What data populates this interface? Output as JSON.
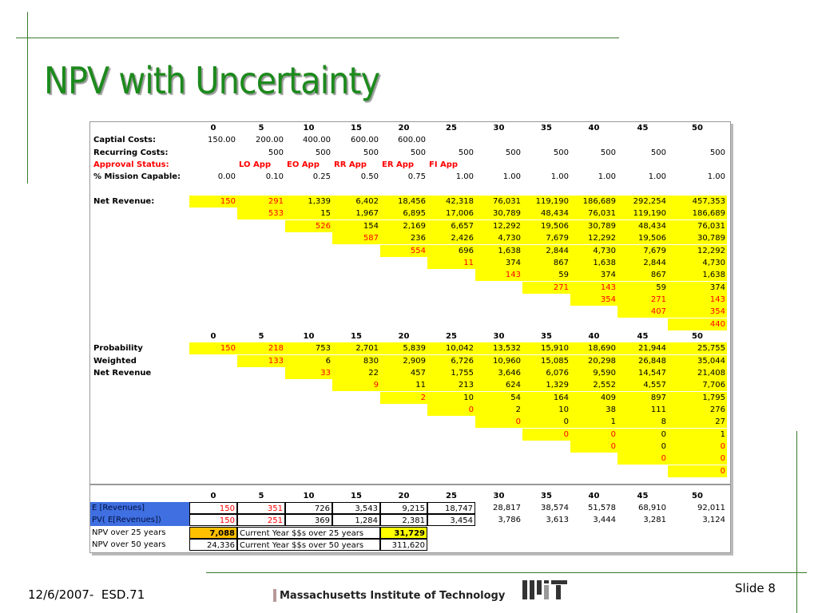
{
  "slide": {
    "title": "NPV with Uncertainty",
    "date": "12/6/2007-  ESD.71",
    "institution": "Massachusetts Institute of Technology",
    "slide_number": "Slide 8"
  },
  "sheet": {
    "columns": [
      "0",
      "5",
      "10",
      "15",
      "20",
      "25",
      "30",
      "35",
      "40",
      "45",
      "50"
    ],
    "inputs": [
      {
        "label": "Captial Costs:",
        "cells": [
          "150.00",
          "200.00",
          "400.00",
          "600.00",
          "600.00",
          null,
          null,
          null,
          null,
          null,
          null
        ]
      },
      {
        "label": "Recurring Costs:",
        "cells": [
          null,
          "500",
          "500",
          "500",
          "500",
          "500",
          "500",
          "500",
          "500",
          "500",
          "500"
        ]
      },
      {
        "label": "Approval Status:",
        "color": "red",
        "align": "left",
        "cells": [
          null,
          "LO App",
          "EO App",
          "RR App",
          "ER App",
          "FI App",
          null,
          null,
          null,
          null,
          null
        ]
      },
      {
        "label": "% Mission Capable:",
        "cells": [
          "0.00",
          "0.10",
          "0.25",
          "0.50",
          "0.75",
          "1.00",
          "1.00",
          "1.00",
          "1.00",
          "1.00",
          "1.00"
        ]
      }
    ],
    "net_revenue": {
      "label": "Net Revenue:",
      "rows": [
        [
          {
            "text": "150",
            "color": "red"
          },
          {
            "text": "291",
            "color": "red"
          },
          "1,339",
          "6,402",
          "18,456",
          "42,318",
          "76,031",
          "119,190",
          "186,689",
          "292,254",
          "457,353"
        ],
        [
          null,
          {
            "text": "533",
            "color": "red"
          },
          "15",
          "1,967",
          "6,895",
          "17,006",
          "30,789",
          "48,434",
          "76,031",
          "119,190",
          "186,689"
        ],
        [
          null,
          null,
          {
            "text": "526",
            "color": "red"
          },
          "154",
          "2,169",
          "6,657",
          "12,292",
          "19,506",
          "30,789",
          "48,434",
          "76,031"
        ],
        [
          null,
          null,
          null,
          {
            "text": "587",
            "color": "red"
          },
          "236",
          "2,426",
          "4,730",
          "7,679",
          "12,292",
          "19,506",
          "30,789"
        ],
        [
          null,
          null,
          null,
          null,
          {
            "text": "554",
            "color": "red"
          },
          "696",
          "1,638",
          "2,844",
          "4,730",
          "7,679",
          "12,292"
        ],
        [
          null,
          null,
          null,
          null,
          null,
          {
            "text": "11",
            "color": "red"
          },
          "374",
          "867",
          "1,638",
          "2,844",
          "4,730"
        ],
        [
          null,
          null,
          null,
          null,
          null,
          null,
          {
            "text": "143",
            "color": "red"
          },
          "59",
          "374",
          "867",
          "1,638"
        ],
        [
          null,
          null,
          null,
          null,
          null,
          null,
          null,
          {
            "text": "271",
            "color": "red"
          },
          {
            "text": "143",
            "color": "red"
          },
          "59",
          "374"
        ],
        [
          null,
          null,
          null,
          null,
          null,
          null,
          null,
          null,
          {
            "text": "354",
            "color": "red"
          },
          {
            "text": "271",
            "color": "red"
          },
          {
            "text": "143",
            "color": "red"
          }
        ],
        [
          null,
          null,
          null,
          null,
          null,
          null,
          null,
          null,
          null,
          {
            "text": "407",
            "color": "red"
          },
          {
            "text": "354",
            "color": "red"
          }
        ],
        [
          null,
          null,
          null,
          null,
          null,
          null,
          null,
          null,
          null,
          null,
          {
            "text": "440",
            "color": "red"
          }
        ]
      ]
    },
    "probability": {
      "labels": [
        "Probability",
        "Weighted",
        "Net Revenue"
      ],
      "rows": [
        [
          {
            "text": "150",
            "color": "red"
          },
          {
            "text": "218",
            "color": "red"
          },
          "753",
          "2,701",
          "5,839",
          "10,042",
          "13,532",
          "15,910",
          "18,690",
          "21,944",
          "25,755"
        ],
        [
          null,
          {
            "text": "133",
            "color": "red"
          },
          "6",
          "830",
          "2,909",
          "6,726",
          "10,960",
          "15,085",
          "20,298",
          "26,848",
          "35,044"
        ],
        [
          null,
          null,
          {
            "text": "33",
            "color": "red"
          },
          "22",
          "457",
          "1,755",
          "3,646",
          "6,076",
          "9,590",
          "14,547",
          "21,408"
        ],
        [
          null,
          null,
          null,
          {
            "text": "9",
            "color": "red"
          },
          "11",
          "213",
          "624",
          "1,329",
          "2,552",
          "4,557",
          "7,706"
        ],
        [
          null,
          null,
          null,
          null,
          {
            "text": "2",
            "color": "red"
          },
          "10",
          "54",
          "164",
          "409",
          "897",
          "1,795"
        ],
        [
          null,
          null,
          null,
          null,
          null,
          {
            "text": "0",
            "color": "red"
          },
          "2",
          "10",
          "38",
          "111",
          "276"
        ],
        [
          null,
          null,
          null,
          null,
          null,
          null,
          {
            "text": "0",
            "color": "red"
          },
          "0",
          "1",
          "8",
          "27"
        ],
        [
          null,
          null,
          null,
          null,
          null,
          null,
          null,
          {
            "text": "0",
            "color": "red"
          },
          {
            "text": "0",
            "color": "red"
          },
          "0",
          "1"
        ],
        [
          null,
          null,
          null,
          null,
          null,
          null,
          null,
          null,
          {
            "text": "0",
            "color": "red"
          },
          "0",
          {
            "text": "0",
            "color": "red"
          }
        ],
        [
          null,
          null,
          null,
          null,
          null,
          null,
          null,
          null,
          null,
          {
            "text": "0",
            "color": "red"
          },
          {
            "text": "0",
            "color": "red"
          }
        ],
        [
          null,
          null,
          null,
          null,
          null,
          null,
          null,
          null,
          null,
          null,
          {
            "text": "0",
            "color": "red"
          }
        ]
      ]
    },
    "summary": [
      {
        "label": "E [Revenues]",
        "cells": [
          {
            "text": "150",
            "color": "red"
          },
          {
            "text": "351",
            "color": "red"
          },
          "726",
          "3,543",
          "9,215",
          "18,747",
          "28,817",
          "38,574",
          "51,578",
          "68,910",
          "92,011"
        ]
      },
      {
        "label": "PV( E[Revenues])",
        "cells": [
          {
            "text": "150",
            "color": "red"
          },
          {
            "text": "251",
            "color": "red"
          },
          "369",
          "1,284",
          "2,381",
          "3,454",
          "3,786",
          "3,613",
          "3,444",
          "3,281",
          "3,124"
        ]
      }
    ],
    "npv": [
      {
        "label": "NPV over 25 years",
        "npv": "7,088",
        "note": "Current Year $$s over 25 years",
        "current": "31,729"
      },
      {
        "label": "NPV over 50 years",
        "npv": "24,336",
        "note": "Current Year $$s over 50 years",
        "current": "311,620"
      }
    ]
  }
}
